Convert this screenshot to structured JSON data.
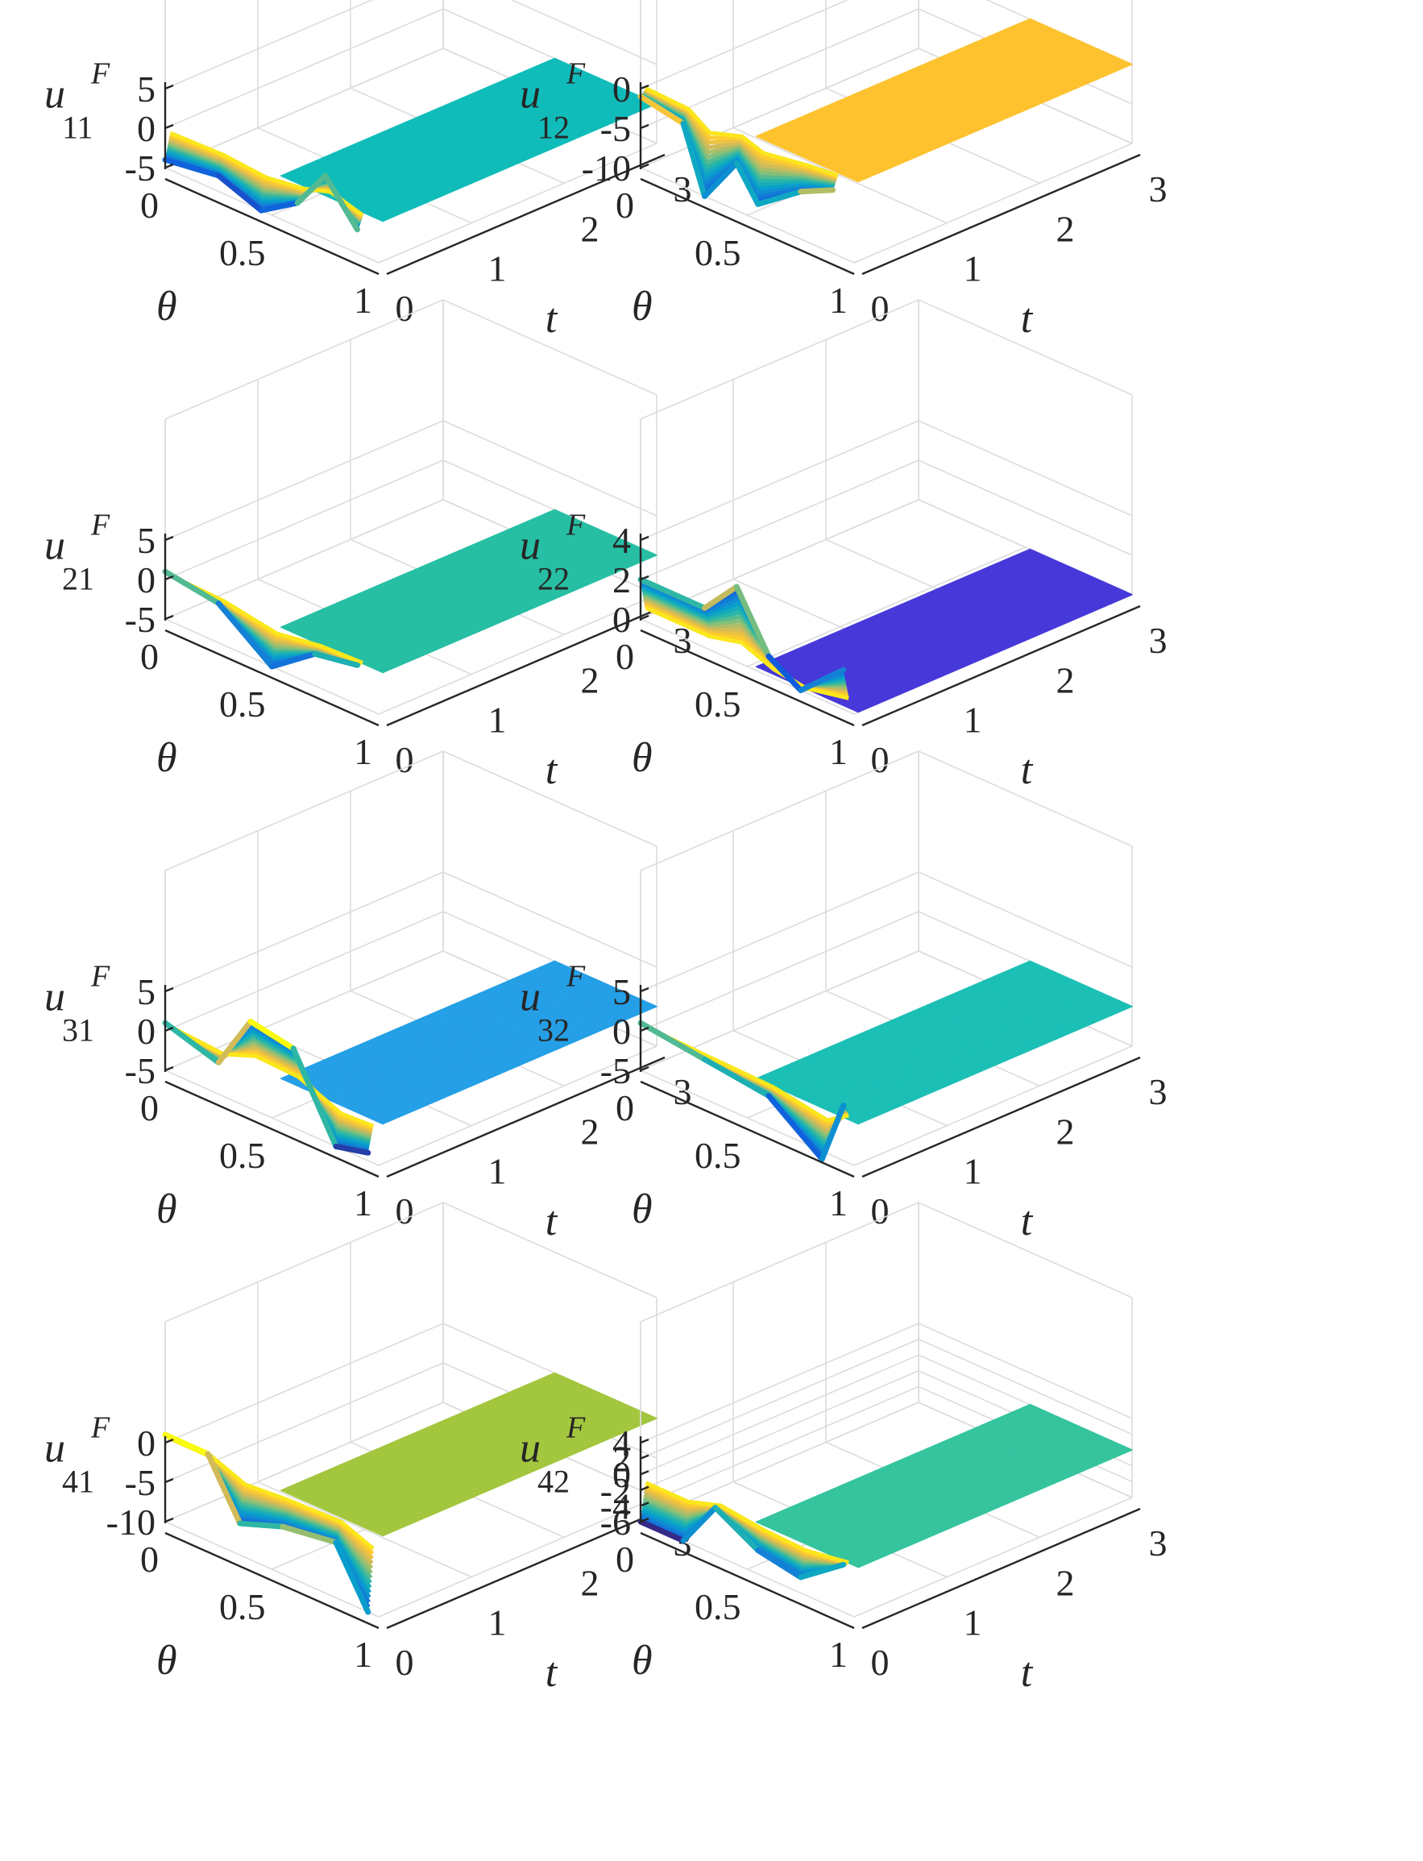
{
  "figure": {
    "grid": true,
    "colormap": "parula",
    "axis_ranges": {
      "theta": [
        0,
        1
      ],
      "t": [
        0,
        3
      ]
    },
    "theta_ticks": [
      "0",
      "0.5",
      "1"
    ],
    "t_ticks": [
      "0",
      "1",
      "2",
      "3"
    ],
    "theta_label": "θ",
    "t_label": "t"
  },
  "chart_data": [
    {
      "type": "surface",
      "zlabel": {
        "main": "u",
        "sup": "F",
        "sub": "11"
      },
      "x": "theta",
      "y": "t",
      "zlim": [
        -5,
        5
      ],
      "z_ticks": [
        "5",
        "0",
        "-5"
      ],
      "steady_value": 0,
      "transient_profile": [
        [
          0,
          -4
        ],
        [
          0.25,
          -3
        ],
        [
          0.45,
          -5
        ],
        [
          0.62,
          -2
        ],
        [
          0.75,
          3
        ],
        [
          0.9,
          -2
        ]
      ],
      "plane_color": "#10bcba"
    },
    {
      "type": "surface",
      "zlabel": {
        "main": "u",
        "sup": "F",
        "sub": "12"
      },
      "x": "theta",
      "y": "t",
      "zlim": [
        -10,
        0
      ],
      "z_ticks": [
        "0",
        "-5",
        "-10"
      ],
      "steady_value": 0,
      "transient_profile": [
        [
          0,
          -1
        ],
        [
          0.2,
          -2
        ],
        [
          0.3,
          -10
        ],
        [
          0.45,
          -4
        ],
        [
          0.55,
          -8
        ],
        [
          0.75,
          -4
        ],
        [
          0.9,
          -2
        ]
      ],
      "plane_color": "#fdc22e"
    },
    {
      "type": "surface",
      "zlabel": {
        "main": "u",
        "sup": "F",
        "sub": "21"
      },
      "x": "theta",
      "y": "t",
      "zlim": [
        -5,
        5
      ],
      "z_ticks": [
        "5",
        "0",
        "-5"
      ],
      "steady_value": 0,
      "transient_profile": [
        [
          0,
          1
        ],
        [
          0.25,
          0
        ],
        [
          0.5,
          -5
        ],
        [
          0.7,
          -1
        ],
        [
          0.9,
          0
        ]
      ],
      "plane_color": "#27bfa4"
    },
    {
      "type": "surface",
      "zlabel": {
        "main": "u",
        "sup": "F",
        "sub": "22"
      },
      "x": "theta",
      "y": "t",
      "zlim": [
        0,
        4
      ],
      "z_ticks": [
        "4",
        "2",
        "0"
      ],
      "steady_value": 0,
      "transient_profile": [
        [
          0,
          2
        ],
        [
          0.3,
          2
        ],
        [
          0.45,
          3.8
        ],
        [
          0.6,
          1
        ],
        [
          0.75,
          0
        ],
        [
          0.95,
          2
        ]
      ],
      "plane_color": "#4638d9"
    },
    {
      "type": "surface",
      "zlabel": {
        "main": "u",
        "sup": "F",
        "sub": "31"
      },
      "x": "theta",
      "y": "t",
      "zlim": [
        -5,
        5
      ],
      "z_ticks": [
        "5",
        "0",
        "-5"
      ],
      "steady_value": 0,
      "transient_profile": [
        [
          0,
          1
        ],
        [
          0.25,
          -1
        ],
        [
          0.4,
          6
        ],
        [
          0.6,
          5
        ],
        [
          0.8,
          -5
        ],
        [
          0.95,
          -4
        ]
      ],
      "plane_color": "#259fe6"
    },
    {
      "type": "surface",
      "zlabel": {
        "main": "u",
        "sup": "F",
        "sub": "32"
      },
      "x": "theta",
      "y": "t",
      "zlim": [
        -5,
        5
      ],
      "z_ticks": [
        "5",
        "0",
        "-5"
      ],
      "steady_value": 0,
      "transient_profile": [
        [
          0,
          1
        ],
        [
          0.3,
          0
        ],
        [
          0.6,
          -1
        ],
        [
          0.85,
          -6
        ],
        [
          0.95,
          2
        ]
      ],
      "plane_color": "#1cbfb5"
    },
    {
      "type": "surface",
      "zlabel": {
        "main": "u",
        "sup": "F",
        "sub": "41"
      },
      "x": "theta",
      "y": "t",
      "zlim": [
        -10,
        0
      ],
      "z_ticks": [
        "0",
        "-5",
        "-10"
      ],
      "steady_value": 0,
      "transient_profile": [
        [
          0,
          1
        ],
        [
          0.2,
          1
        ],
        [
          0.35,
          -6
        ],
        [
          0.55,
          -4
        ],
        [
          0.8,
          -3
        ],
        [
          0.95,
          -10
        ]
      ],
      "plane_color": "#a2c73e"
    },
    {
      "type": "surface",
      "zlabel": {
        "main": "u",
        "sup": "F",
        "sub": "42"
      },
      "x": "theta",
      "y": "t",
      "zlim": [
        -6,
        4
      ],
      "z_ticks": [
        "4",
        "2",
        "0",
        "-2",
        "-4",
        "-6"
      ],
      "steady_value": 0,
      "transient_profile": [
        [
          0,
          -6
        ],
        [
          0.2,
          -6
        ],
        [
          0.35,
          0
        ],
        [
          0.55,
          -3
        ],
        [
          0.75,
          -4
        ],
        [
          0.95,
          0
        ]
      ],
      "plane_color": "#35c49d"
    }
  ]
}
